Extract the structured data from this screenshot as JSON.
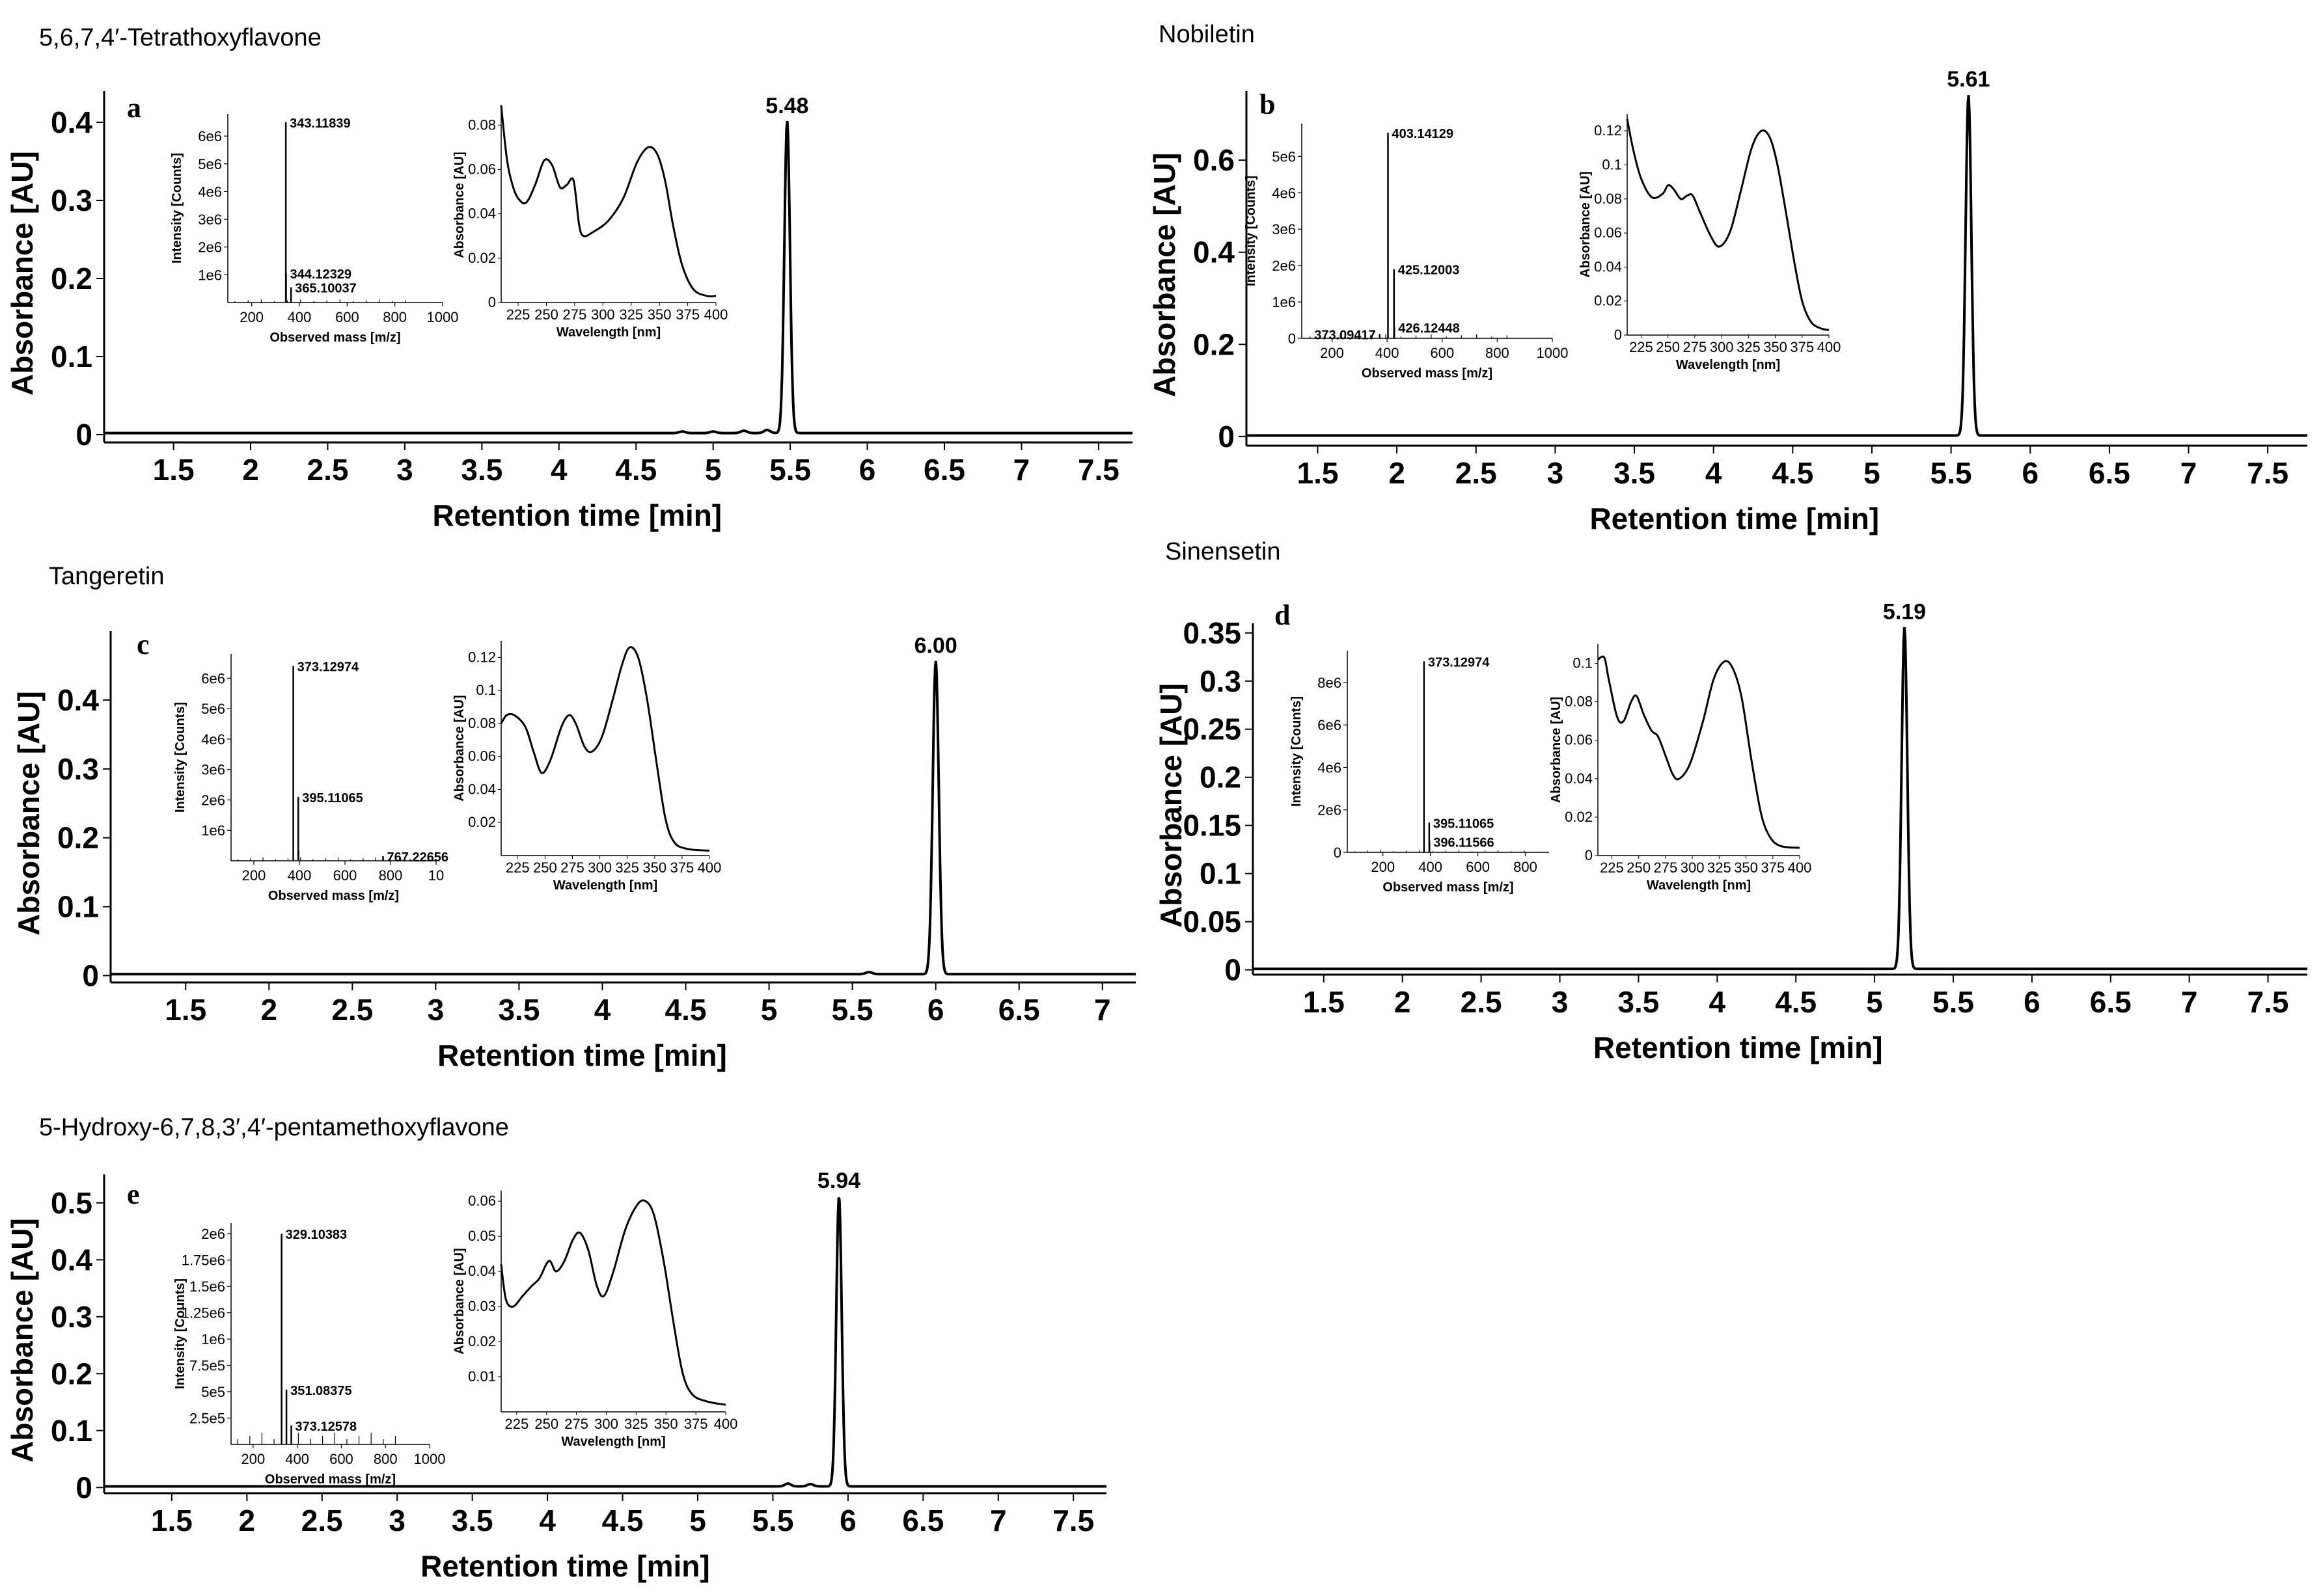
{
  "figure": "HPLC chromatograms with MS and UV inset spectra",
  "chart_data": [
    {
      "id": "a",
      "type": "line",
      "title": "5,6,7,4′-Tetrathoxyflavone",
      "letter": "a",
      "xlabel": "Retention time [min]",
      "ylabel": "Absorbance [AU]",
      "xlim": [
        1.05,
        7.72
      ],
      "ylim": [
        -0.01,
        0.44
      ],
      "x_ticks": [
        "1.5",
        "2",
        "2.5",
        "3",
        "3.5",
        "4",
        "4.5",
        "5",
        "5.5",
        "6",
        "6.5",
        "7",
        "7.5"
      ],
      "y_ticks": [
        "0",
        "0.1",
        "0.2",
        "0.3",
        "0.4"
      ],
      "peak": {
        "rt": 5.48,
        "height": 0.4,
        "label": "5.48"
      },
      "baseline": 0.002,
      "minor_peaks": [
        [
          4.8,
          0.002
        ],
        [
          5.0,
          0.002
        ],
        [
          5.2,
          0.003
        ],
        [
          5.35,
          0.004
        ]
      ],
      "ms_inset": {
        "xlabel": "Observed mass [m/z]",
        "ylabel": "Intensity [Counts]",
        "xlim": [
          100,
          1000
        ],
        "ylim": [
          0,
          6.8
        ],
        "x_ticks": [
          "200",
          "400",
          "600",
          "800",
          "1000"
        ],
        "y_ticks": [
          "1e6",
          "2e6",
          "3e6",
          "4e6",
          "5e6",
          "6e6"
        ],
        "peaks": [
          {
            "mz": 343.11839,
            "intensity": 6.5,
            "label": "343.11839"
          },
          {
            "mz": 344.12329,
            "intensity": 1.05,
            "label": "344.12329"
          },
          {
            "mz": 365.10037,
            "intensity": 0.55,
            "label": "365.10037"
          }
        ]
      },
      "uv_inset": {
        "xlabel": "Wavelength [nm]",
        "ylabel": "Absorbance [AU]",
        "xlim": [
          210,
          400
        ],
        "ylim": [
          0,
          0.088
        ],
        "x_ticks": [
          "225",
          "250",
          "275",
          "300",
          "325",
          "350",
          "375",
          "400"
        ],
        "y_ticks": [
          "0",
          "0.02",
          "0.04",
          "0.06",
          "0.08"
        ],
        "curve": [
          [
            210,
            0.089
          ],
          [
            215,
            0.065
          ],
          [
            220,
            0.053
          ],
          [
            225,
            0.047
          ],
          [
            232,
            0.045
          ],
          [
            240,
            0.053
          ],
          [
            248,
            0.064
          ],
          [
            255,
            0.062
          ],
          [
            262,
            0.052
          ],
          [
            268,
            0.053
          ],
          [
            274,
            0.055
          ],
          [
            279,
            0.035
          ],
          [
            283,
            0.03
          ],
          [
            292,
            0.032
          ],
          [
            305,
            0.037
          ],
          [
            318,
            0.047
          ],
          [
            330,
            0.063
          ],
          [
            340,
            0.07
          ],
          [
            348,
            0.067
          ],
          [
            355,
            0.055
          ],
          [
            362,
            0.035
          ],
          [
            370,
            0.017
          ],
          [
            380,
            0.006
          ],
          [
            392,
            0.003
          ],
          [
            400,
            0.003
          ]
        ]
      }
    },
    {
      "id": "b",
      "type": "line",
      "title": "Nobiletin",
      "letter": "b",
      "xlabel": "Retention time [min]",
      "ylabel": "Absorbance [AU]",
      "xlim": [
        1.05,
        7.75
      ],
      "ylim": [
        -0.02,
        0.75
      ],
      "x_ticks": [
        "1.5",
        "2",
        "2.5",
        "3",
        "3.5",
        "4",
        "4.5",
        "5",
        "5.5",
        "6",
        "6.5",
        "7",
        "7.5"
      ],
      "y_ticks": [
        "0",
        "0.2",
        "0.4",
        "0.6"
      ],
      "peak": {
        "rt": 5.61,
        "height": 0.74,
        "label": "5.61"
      },
      "baseline": 0.002,
      "minor_peaks": [],
      "ms_inset": {
        "xlabel": "Observed mass [m/z]",
        "ylabel": "Intensity [Counts]",
        "xlim": [
          90,
          1000
        ],
        "ylim": [
          0,
          5.9
        ],
        "x_ticks": [
          "200",
          "400",
          "600",
          "800",
          "1000"
        ],
        "y_ticks": [
          "0",
          "1e6",
          "2e6",
          "3e6",
          "4e6",
          "5e6"
        ],
        "peaks": [
          {
            "mz": 403.14129,
            "intensity": 5.65,
            "label": "403.14129"
          },
          {
            "mz": 425.12003,
            "intensity": 1.9,
            "label": "425.12003"
          },
          {
            "mz": 426.12448,
            "intensity": 0.3,
            "label": "426.12448"
          },
          {
            "mz": 373.09417,
            "intensity": 0.12,
            "label": "373.09417"
          }
        ]
      },
      "uv_inset": {
        "xlabel": "Wavelength [nm]",
        "ylabel": "Absorbance [AU]",
        "xlim": [
          212,
          400
        ],
        "ylim": [
          0,
          0.13
        ],
        "x_ticks": [
          "225",
          "250",
          "275",
          "300",
          "325",
          "350",
          "375",
          "400"
        ],
        "y_ticks": [
          "0",
          "0.02",
          "0.04",
          "0.06",
          "0.08",
          "0.1",
          "0.12"
        ],
        "curve": [
          [
            212,
            0.127
          ],
          [
            218,
            0.108
          ],
          [
            225,
            0.092
          ],
          [
            235,
            0.081
          ],
          [
            245,
            0.083
          ],
          [
            250,
            0.088
          ],
          [
            255,
            0.086
          ],
          [
            262,
            0.08
          ],
          [
            268,
            0.082
          ],
          [
            273,
            0.082
          ],
          [
            280,
            0.072
          ],
          [
            290,
            0.058
          ],
          [
            298,
            0.052
          ],
          [
            308,
            0.061
          ],
          [
            318,
            0.085
          ],
          [
            328,
            0.11
          ],
          [
            337,
            0.12
          ],
          [
            345,
            0.116
          ],
          [
            352,
            0.1
          ],
          [
            360,
            0.072
          ],
          [
            368,
            0.042
          ],
          [
            375,
            0.02
          ],
          [
            383,
            0.008
          ],
          [
            392,
            0.004
          ],
          [
            400,
            0.003
          ]
        ]
      }
    },
    {
      "id": "c",
      "type": "line",
      "title": "Tangeretin",
      "letter": "c",
      "xlabel": "Retention time [min]",
      "ylabel": "Absorbance [AU]",
      "xlim": [
        1.05,
        7.2
      ],
      "ylim": [
        -0.01,
        0.5
      ],
      "x_ticks": [
        "1.5",
        "2",
        "2.5",
        "3",
        "3.5",
        "4",
        "4.5",
        "5",
        "5.5",
        "6",
        "6.5",
        "7"
      ],
      "y_ticks": [
        "0",
        "0.1",
        "0.2",
        "0.3",
        "0.4"
      ],
      "peak": {
        "rt": 6.0,
        "height": 0.455,
        "label": "6.00"
      },
      "baseline": 0.002,
      "minor_peaks": [
        [
          5.6,
          0.003
        ]
      ],
      "ms_inset": {
        "xlabel": "Observed mass [m/z]",
        "ylabel": "Intensity [Counts]",
        "xlim": [
          100,
          1000
        ],
        "ylim": [
          0,
          6.8
        ],
        "x_ticks": [
          "200",
          "400",
          "600",
          "800",
          "10"
        ],
        "y_ticks": [
          "1e6",
          "2e6",
          "3e6",
          "4e6",
          "5e6",
          "6e6"
        ],
        "peaks": [
          {
            "mz": 373.12974,
            "intensity": 6.4,
            "label": "373.12974"
          },
          {
            "mz": 395.11065,
            "intensity": 2.1,
            "label": "395.11065"
          },
          {
            "mz": 396.1,
            "intensity": 0.35,
            "label": ""
          },
          {
            "mz": 767.22656,
            "intensity": 0.15,
            "label": "767.22656"
          }
        ]
      },
      "uv_inset": {
        "xlabel": "Wavelength [nm]",
        "ylabel": "Absorbance [AU]",
        "xlim": [
          210,
          400
        ],
        "ylim": [
          0,
          0.13
        ],
        "x_ticks": [
          "225",
          "250",
          "275",
          "300",
          "325",
          "350",
          "375",
          "400"
        ],
        "y_ticks": [
          "0.02",
          "0.04",
          "0.06",
          "0.08",
          "0.1",
          "0.12"
        ],
        "curve": [
          [
            210,
            0.08
          ],
          [
            215,
            0.085
          ],
          [
            222,
            0.085
          ],
          [
            232,
            0.078
          ],
          [
            240,
            0.062
          ],
          [
            247,
            0.05
          ],
          [
            255,
            0.058
          ],
          [
            265,
            0.078
          ],
          [
            272,
            0.085
          ],
          [
            278,
            0.08
          ],
          [
            286,
            0.066
          ],
          [
            293,
            0.063
          ],
          [
            302,
            0.072
          ],
          [
            312,
            0.095
          ],
          [
            320,
            0.115
          ],
          [
            327,
            0.126
          ],
          [
            335,
            0.12
          ],
          [
            343,
            0.095
          ],
          [
            352,
            0.055
          ],
          [
            360,
            0.022
          ],
          [
            368,
            0.008
          ],
          [
            380,
            0.004
          ],
          [
            400,
            0.003
          ]
        ]
      }
    },
    {
      "id": "d",
      "type": "line",
      "title": "Sinensetin",
      "letter": "d",
      "xlabel": "Retention time [min]",
      "ylabel": "Absorbance [AU]",
      "xlim": [
        1.05,
        7.75
      ],
      "ylim": [
        -0.005,
        0.36
      ],
      "x_ticks": [
        "1.5",
        "2",
        "2.5",
        "3",
        "3.5",
        "4",
        "4.5",
        "5",
        "5.5",
        "6",
        "6.5",
        "7",
        "7.5"
      ],
      "y_ticks": [
        "0",
        "0.05",
        "0.1",
        "0.15",
        "0.2",
        "0.25",
        "0.3",
        "0.35"
      ],
      "peak": {
        "rt": 5.19,
        "height": 0.355,
        "label": "5.19"
      },
      "baseline": 0.001,
      "minor_peaks": [],
      "ms_inset": {
        "xlabel": "Observed mass [m/z]",
        "ylabel": "Intensity [Counts]",
        "xlim": [
          50,
          900
        ],
        "ylim": [
          0,
          9.5
        ],
        "x_ticks": [
          "200",
          "400",
          "600",
          "800"
        ],
        "y_ticks": [
          "0",
          "2e6",
          "4e6",
          "6e6",
          "8e6"
        ],
        "peaks": [
          {
            "mz": 373.12974,
            "intensity": 9.0,
            "label": "373.12974"
          },
          {
            "mz": 395.11065,
            "intensity": 1.4,
            "label": "395.11065"
          },
          {
            "mz": 396.11566,
            "intensity": 0.5,
            "label": "396.11566"
          }
        ]
      },
      "uv_inset": {
        "xlabel": "Wavelength [nm]",
        "ylabel": "Absorbance [AU]",
        "xlim": [
          212,
          400
        ],
        "ylim": [
          0,
          0.11
        ],
        "x_ticks": [
          "225",
          "250",
          "275",
          "300",
          "325",
          "350",
          "375",
          "400"
        ],
        "y_ticks": [
          "0",
          "0.02",
          "0.04",
          "0.06",
          "0.08",
          "0.1"
        ],
        "curve": [
          [
            212,
            0.102
          ],
          [
            218,
            0.103
          ],
          [
            222,
            0.092
          ],
          [
            230,
            0.072
          ],
          [
            236,
            0.07
          ],
          [
            243,
            0.08
          ],
          [
            248,
            0.083
          ],
          [
            255,
            0.073
          ],
          [
            262,
            0.065
          ],
          [
            268,
            0.062
          ],
          [
            275,
            0.052
          ],
          [
            282,
            0.042
          ],
          [
            288,
            0.04
          ],
          [
            298,
            0.048
          ],
          [
            310,
            0.07
          ],
          [
            320,
            0.092
          ],
          [
            330,
            0.101
          ],
          [
            338,
            0.097
          ],
          [
            346,
            0.082
          ],
          [
            355,
            0.05
          ],
          [
            364,
            0.022
          ],
          [
            372,
            0.01
          ],
          [
            382,
            0.005
          ],
          [
            400,
            0.004
          ]
        ]
      }
    },
    {
      "id": "e",
      "type": "line",
      "title": "5-Hydroxy-6,7,8,3′,4′-pentamethoxyflavone",
      "letter": "e",
      "xlabel": "Retention time [min]",
      "ylabel": "Absorbance [AU]",
      "xlim": [
        1.05,
        7.72
      ],
      "ylim": [
        -0.01,
        0.55
      ],
      "x_ticks": [
        "1.5",
        "2",
        "2.5",
        "3",
        "3.5",
        "4",
        "4.5",
        "5",
        "5.5",
        "6",
        "6.5",
        "7",
        "7.5"
      ],
      "y_ticks": [
        "0",
        "0.1",
        "0.2",
        "0.3",
        "0.4",
        "0.5"
      ],
      "peak": {
        "rt": 5.94,
        "height": 0.51,
        "label": "5.94"
      },
      "baseline": 0.002,
      "minor_peaks": [
        [
          5.6,
          0.005
        ],
        [
          5.75,
          0.004
        ]
      ],
      "ms_inset": {
        "xlabel": "Observed mass [m/z]",
        "ylabel": "Intensity [Counts]",
        "xlim": [
          100,
          1000
        ],
        "ylim": [
          0,
          2.1
        ],
        "x_ticks": [
          "200",
          "400",
          "600",
          "800",
          "1000"
        ],
        "y_ticks": [
          "2.5e5",
          "5e5",
          "7.5e5",
          "1e6",
          "1.25e6",
          "1.5e6",
          "1.75e6",
          "2e6"
        ],
        "peaks": [
          {
            "mz": 329.10383,
            "intensity": 2.0,
            "label": "329.10383"
          },
          {
            "mz": 351.08375,
            "intensity": 0.52,
            "label": "351.08375"
          },
          {
            "mz": 373.12578,
            "intensity": 0.18,
            "label": "373.12578"
          }
        ]
      },
      "uv_inset": {
        "xlabel": "Wavelength [nm]",
        "ylabel": "Absorbance [AU]",
        "xlim": [
          212,
          400
        ],
        "ylim": [
          0,
          0.063
        ],
        "x_ticks": [
          "225",
          "250",
          "275",
          "300",
          "325",
          "350",
          "375",
          "400"
        ],
        "y_ticks": [
          "0.01",
          "0.02",
          "0.03",
          "0.04",
          "0.05",
          "0.06"
        ],
        "curve": [
          [
            212,
            0.042
          ],
          [
            216,
            0.032
          ],
          [
            222,
            0.03
          ],
          [
            230,
            0.033
          ],
          [
            238,
            0.036
          ],
          [
            244,
            0.038
          ],
          [
            252,
            0.043
          ],
          [
            258,
            0.04
          ],
          [
            265,
            0.043
          ],
          [
            272,
            0.049
          ],
          [
            278,
            0.051
          ],
          [
            285,
            0.046
          ],
          [
            292,
            0.036
          ],
          [
            298,
            0.033
          ],
          [
            306,
            0.04
          ],
          [
            316,
            0.052
          ],
          [
            326,
            0.059
          ],
          [
            333,
            0.06
          ],
          [
            340,
            0.056
          ],
          [
            348,
            0.043
          ],
          [
            356,
            0.026
          ],
          [
            364,
            0.011
          ],
          [
            372,
            0.005
          ],
          [
            384,
            0.003
          ],
          [
            400,
            0.002
          ]
        ]
      }
    }
  ]
}
